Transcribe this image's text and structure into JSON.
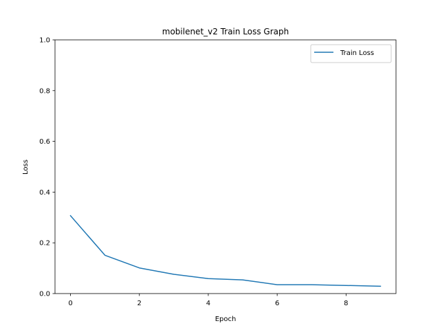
{
  "chart_data": {
    "type": "line",
    "title": "mobilenet_v2 Train Loss Graph",
    "xlabel": "Epoch",
    "ylabel": "Loss",
    "xlim": [
      -0.45,
      9.45
    ],
    "ylim": [
      0.0,
      1.0
    ],
    "xticks": [
      0,
      2,
      4,
      6,
      8
    ],
    "yticks": [
      0.0,
      0.2,
      0.4,
      0.6,
      0.8,
      1.0
    ],
    "xtick_labels": [
      "0",
      "2",
      "4",
      "6",
      "8"
    ],
    "ytick_labels": [
      "0.0",
      "0.2",
      "0.4",
      "0.6",
      "0.8",
      "1.0"
    ],
    "grid": false,
    "legend_position": "upper-right",
    "series": [
      {
        "name": "Train Loss",
        "color": "#1f77b4",
        "x": [
          0,
          1,
          2,
          3,
          4,
          5,
          6,
          7,
          8,
          9
        ],
        "y": [
          0.307,
          0.151,
          0.101,
          0.076,
          0.059,
          0.054,
          0.035,
          0.035,
          0.032,
          0.029
        ]
      }
    ]
  }
}
